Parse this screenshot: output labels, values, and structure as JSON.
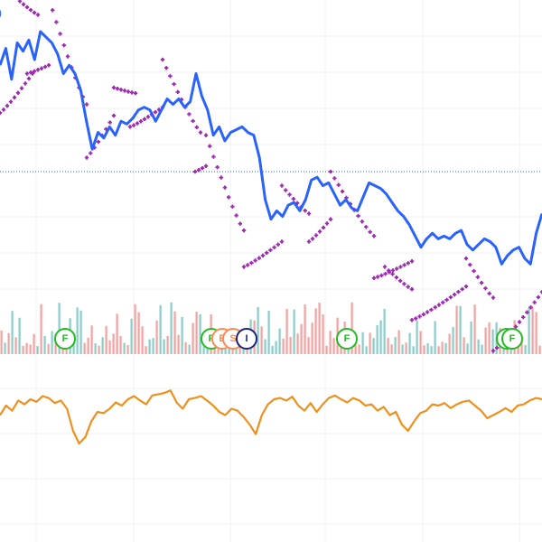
{
  "colors": {
    "price_line": "#2962ff",
    "sar_dots": "#9c27b0",
    "volume_up": "#26a69a",
    "volume_down": "#ef5350",
    "oscillator": "#f0901c",
    "reference_line": "#2962ff",
    "marker_f": "#22bb22",
    "marker_e": "#ff8a50",
    "marker_s": "#ff8a50",
    "marker_i": "#1a237e"
  },
  "corner_text": ")",
  "chart_data": [
    {
      "type": "line",
      "panel": "price",
      "reference_level": 0.5,
      "series": [
        {
          "kind": "price-line",
          "values": [
            0.88,
            0.94,
            0.83,
            0.96,
            0.93,
            0.97,
            0.9,
            1.0,
            0.98,
            0.96,
            0.92,
            0.85,
            0.88,
            0.85,
            0.79,
            0.68,
            0.58,
            0.64,
            0.62,
            0.66,
            0.63,
            0.68,
            0.67,
            0.69,
            0.72,
            0.73,
            0.72,
            0.68,
            0.72,
            0.76,
            0.74,
            0.76,
            0.73,
            0.75,
            0.85,
            0.77,
            0.72,
            0.63,
            0.66,
            0.61,
            0.64,
            0.65,
            0.66,
            0.64,
            0.63,
            0.55,
            0.4,
            0.33,
            0.36,
            0.34,
            0.38,
            0.39,
            0.36,
            0.4,
            0.47,
            0.48,
            0.45,
            0.46,
            0.42,
            0.38,
            0.4,
            0.37,
            0.36,
            0.41,
            0.46,
            0.45,
            0.44,
            0.42,
            0.39,
            0.36,
            0.34,
            0.31,
            0.27,
            0.23,
            0.26,
            0.28,
            0.26,
            0.27,
            0.26,
            0.28,
            0.29,
            0.24,
            0.22,
            0.24,
            0.26,
            0.25,
            0.23,
            0.17,
            0.2,
            0.22,
            0.23,
            0.19,
            0.17,
            0.28,
            0.35
          ]
        },
        {
          "kind": "parabolic-sar",
          "segments": [
            {
              "x_range": [
                0.0,
                0.06
              ],
              "values_range": [
                0.71,
                0.85
              ],
              "side": "below"
            },
            {
              "x_range": [
                0.03,
                0.07
              ],
              "values_range": [
                1.12,
                1.06
              ],
              "side": "above"
            },
            {
              "x_range": [
                0.05,
                0.09
              ],
              "values_range": [
                0.85,
                0.88
              ],
              "side": "below"
            },
            {
              "x_range": [
                0.09,
                0.16
              ],
              "values_range": [
                1.12,
                0.74
              ],
              "side": "above"
            },
            {
              "x_range": [
                0.16,
                0.21
              ],
              "values_range": [
                0.55,
                0.7
              ],
              "side": "below"
            },
            {
              "x_range": [
                0.21,
                0.25
              ],
              "values_range": [
                0.8,
                0.78
              ],
              "side": "above"
            },
            {
              "x_range": [
                0.24,
                0.3
              ],
              "values_range": [
                0.66,
                0.73
              ],
              "side": "below"
            },
            {
              "x_range": [
                0.3,
                0.37
              ],
              "values_range": [
                0.9,
                0.64
              ],
              "side": "above"
            },
            {
              "x_range": [
                0.36,
                0.38
              ],
              "values_range": [
                0.5,
                0.52
              ],
              "side": "below"
            },
            {
              "x_range": [
                0.38,
                0.45
              ],
              "values_range": [
                0.63,
                0.29
              ],
              "side": "above"
            },
            {
              "x_range": [
                0.45,
                0.52
              ],
              "values_range": [
                0.16,
                0.25
              ],
              "side": "below"
            },
            {
              "x_range": [
                0.52,
                0.57
              ],
              "values_range": [
                0.45,
                0.35
              ],
              "side": "above"
            },
            {
              "x_range": [
                0.57,
                0.61
              ],
              "values_range": [
                0.25,
                0.33
              ],
              "side": "below"
            },
            {
              "x_range": [
                0.61,
                0.69
              ],
              "values_range": [
                0.5,
                0.27
              ],
              "side": "above"
            },
            {
              "x_range": [
                0.69,
                0.76
              ],
              "values_range": [
                0.12,
                0.18
              ],
              "side": "below"
            },
            {
              "x_range": [
                0.71,
                0.76
              ],
              "values_range": [
                0.16,
                0.08
              ],
              "side": "above"
            },
            {
              "x_range": [
                0.76,
                0.86
              ],
              "values_range": [
                -0.03,
                0.09
              ],
              "side": "below"
            },
            {
              "x_range": [
                0.86,
                0.91
              ],
              "values_range": [
                0.19,
                0.05
              ],
              "side": "above"
            },
            {
              "x_range": [
                0.91,
                1.0
              ],
              "values_range": [
                -0.14,
                0.07
              ],
              "side": "below"
            }
          ]
        }
      ]
    },
    {
      "type": "bar",
      "panel": "volume",
      "count": 150,
      "up_fraction": 0.42,
      "max_relative": 1.0
    },
    {
      "type": "line",
      "panel": "oscillator",
      "values": [
        0.55,
        0.7,
        0.62,
        0.78,
        0.72,
        0.8,
        0.76,
        0.85,
        0.82,
        0.74,
        0.78,
        0.65,
        0.3,
        0.1,
        0.2,
        0.45,
        0.6,
        0.58,
        0.65,
        0.75,
        0.7,
        0.8,
        0.85,
        0.78,
        0.72,
        0.86,
        0.88,
        0.9,
        0.94,
        0.75,
        0.65,
        0.8,
        0.82,
        0.85,
        0.78,
        0.7,
        0.6,
        0.55,
        0.65,
        0.62,
        0.52,
        0.4,
        0.25,
        0.55,
        0.72,
        0.8,
        0.82,
        0.78,
        0.84,
        0.7,
        0.62,
        0.74,
        0.6,
        0.72,
        0.82,
        0.86,
        0.8,
        0.75,
        0.82,
        0.78,
        0.7,
        0.72,
        0.62,
        0.68,
        0.55,
        0.6,
        0.4,
        0.3,
        0.45,
        0.58,
        0.62,
        0.72,
        0.7,
        0.74,
        0.66,
        0.72,
        0.76,
        0.78,
        0.7,
        0.62,
        0.5,
        0.55,
        0.6,
        0.66,
        0.6,
        0.7,
        0.72,
        0.78,
        0.82,
        0.8
      ]
    }
  ],
  "markers": [
    {
      "label": "F",
      "x": 0.12,
      "kind": "marker_f"
    },
    {
      "label": "F",
      "x": 0.39,
      "kind": "marker_f"
    },
    {
      "label": "E",
      "x": 0.41,
      "kind": "marker_e"
    },
    {
      "label": "S",
      "x": 0.43,
      "kind": "marker_s"
    },
    {
      "label": "I",
      "x": 0.455,
      "kind": "marker_i"
    },
    {
      "label": "F",
      "x": 0.64,
      "kind": "marker_f"
    },
    {
      "label": "F",
      "x": 0.935,
      "kind": "marker_f"
    },
    {
      "label": "F",
      "x": 0.945,
      "kind": "marker_f"
    }
  ]
}
